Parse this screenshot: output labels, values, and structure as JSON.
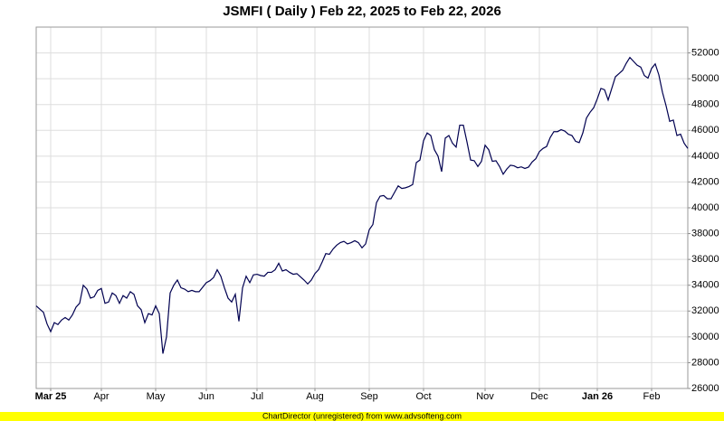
{
  "chart_data": {
    "type": "line",
    "title": "JSMFI ( Daily ) Feb 22, 2025 to Feb 22, 2026",
    "footer": "ChartDirector (unregistered) from www.advsofteng.com",
    "categories": [
      null,
      null,
      null,
      null,
      "Mar 25",
      null,
      null,
      null,
      null,
      null,
      null,
      null,
      null,
      null,
      null,
      null,
      null,
      null,
      "Apr",
      null,
      null,
      null,
      null,
      null,
      null,
      null,
      null,
      null,
      null,
      null,
      null,
      null,
      null,
      "May",
      null,
      null,
      null,
      null,
      null,
      null,
      null,
      null,
      null,
      null,
      null,
      null,
      null,
      "Jun",
      null,
      null,
      null,
      null,
      null,
      null,
      null,
      null,
      null,
      null,
      null,
      null,
      null,
      "Jul",
      null,
      null,
      null,
      null,
      null,
      null,
      null,
      null,
      null,
      null,
      null,
      null,
      null,
      null,
      null,
      "Aug",
      null,
      null,
      null,
      null,
      null,
      null,
      null,
      null,
      null,
      null,
      null,
      null,
      null,
      null,
      "Sep",
      null,
      null,
      null,
      null,
      null,
      null,
      null,
      null,
      null,
      null,
      null,
      null,
      null,
      null,
      "Oct",
      null,
      null,
      null,
      null,
      null,
      null,
      null,
      null,
      null,
      null,
      null,
      null,
      null,
      null,
      null,
      null,
      "Nov",
      null,
      null,
      null,
      null,
      null,
      null,
      null,
      null,
      null,
      null,
      null,
      null,
      null,
      null,
      "Dec",
      null,
      null,
      null,
      null,
      null,
      null,
      null,
      null,
      null,
      null,
      null,
      null,
      null,
      null,
      null,
      "Jan 26",
      null,
      null,
      null,
      null,
      null,
      null,
      null,
      null,
      null,
      null,
      null,
      null,
      null,
      null,
      "Feb",
      null,
      null,
      null,
      null,
      null,
      null,
      null,
      null,
      null,
      null
    ],
    "series": [
      {
        "name": "JSMFI",
        "color": "#000050",
        "values": [
          32400,
          32150,
          31900,
          31000,
          30400,
          31100,
          30950,
          31300,
          31500,
          31300,
          31700,
          32300,
          32600,
          34000,
          33700,
          33000,
          33100,
          33600,
          33750,
          32600,
          32700,
          33400,
          33200,
          32600,
          33200,
          33000,
          33500,
          33300,
          32400,
          32100,
          31100,
          31800,
          31700,
          32400,
          31800,
          28700,
          30000,
          33400,
          34000,
          34400,
          33800,
          33700,
          33500,
          33600,
          33500,
          33500,
          33850,
          34200,
          34350,
          34600,
          35200,
          34700,
          33800,
          33000,
          32700,
          33300,
          31200,
          33800,
          34700,
          34200,
          34800,
          34850,
          34750,
          34700,
          35000,
          35000,
          35200,
          35700,
          35100,
          35200,
          35000,
          34850,
          34900,
          34650,
          34400,
          34100,
          34400,
          34900,
          35200,
          35800,
          36450,
          36400,
          36800,
          37100,
          37300,
          37400,
          37200,
          37300,
          37450,
          37300,
          36900,
          37200,
          38300,
          38700,
          40400,
          40900,
          40950,
          40700,
          40700,
          41200,
          41700,
          41500,
          41550,
          41650,
          41800,
          43500,
          43700,
          45200,
          45800,
          45600,
          44500,
          44000,
          42800,
          45400,
          45600,
          45000,
          44700,
          46400,
          46400,
          45100,
          43700,
          43650,
          43200,
          43600,
          44850,
          44500,
          43600,
          43650,
          43200,
          42600,
          43000,
          43300,
          43250,
          43100,
          43170,
          43050,
          43150,
          43550,
          43800,
          44350,
          44600,
          44750,
          45450,
          45900,
          45900,
          46050,
          45950,
          45700,
          45600,
          45150,
          45050,
          45800,
          46950,
          47400,
          47750,
          48450,
          49250,
          49150,
          48350,
          49250,
          50150,
          50400,
          50650,
          51200,
          51650,
          51350,
          51050,
          50900,
          50250,
          50050,
          50800,
          51150,
          50300,
          48950,
          47900,
          46700,
          46800,
          45600,
          45700,
          45000,
          44600
        ]
      }
    ],
    "ylim": [
      26000,
      54000
    ],
    "yticks": [
      26000,
      28000,
      30000,
      32000,
      34000,
      36000,
      38000,
      40000,
      42000,
      44000,
      46000,
      48000,
      50000,
      52000
    ],
    "grid": true
  }
}
